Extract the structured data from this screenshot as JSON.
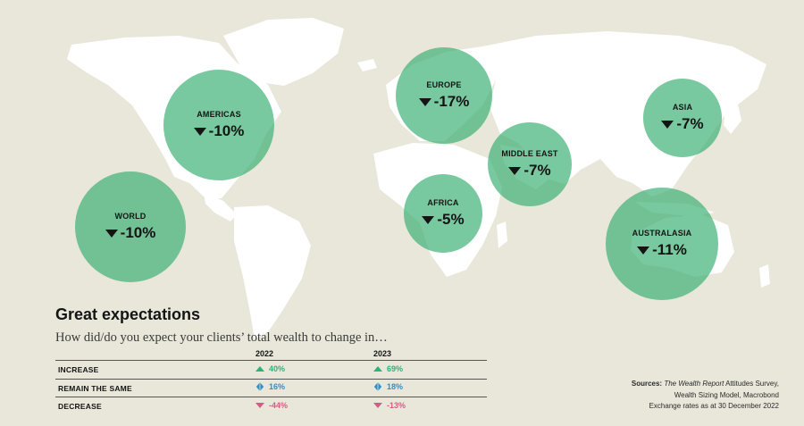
{
  "chart_data": [
    {
      "type": "bubble-map",
      "unit": "%",
      "regions": [
        {
          "name": "WORLD",
          "value": -10
        },
        {
          "name": "AMERICAS",
          "value": -10
        },
        {
          "name": "EUROPE",
          "value": -17
        },
        {
          "name": "AFRICA",
          "value": -5
        },
        {
          "name": "MIDDLE EAST",
          "value": -7
        },
        {
          "name": "ASIA",
          "value": -7
        },
        {
          "name": "AUSTRALASIA",
          "value": -11
        }
      ]
    },
    {
      "type": "table",
      "title": "Great expectations",
      "subtitle": "How did/do you expect your clients’ total wealth to change in…",
      "columns": [
        "2022",
        "2023"
      ],
      "rows": [
        {
          "label": "INCREASE",
          "values": [
            40,
            69
          ],
          "icon": "up-triangle-icon",
          "color": "#2fb17a"
        },
        {
          "label": "REMAIN THE SAME",
          "values": [
            16,
            18
          ],
          "icon": "diamond-icon",
          "color": "#2f8fc4"
        },
        {
          "label": "DECREASE",
          "values": [
            -44,
            -13
          ],
          "icon": "down-triangle-icon",
          "color": "#d65a86"
        }
      ]
    }
  ],
  "display": {
    "bubbles": [
      {
        "label": "WORLD",
        "value": "-10%"
      },
      {
        "label": "AMERICAS",
        "value": "-10%"
      },
      {
        "label": "EUROPE",
        "value": "-17%"
      },
      {
        "label": "AFRICA",
        "value": "-5%"
      },
      {
        "label": "MIDDLE EAST",
        "value": "-7%"
      },
      {
        "label": "ASIA",
        "value": "-7%"
      },
      {
        "label": "AUSTRALASIA",
        "value": "-11%"
      }
    ],
    "table": {
      "title": "Great expectations",
      "subtitle": "How did/do you expect your clients’ total wealth to change in…",
      "year_2022": "2022",
      "year_2023": "2023",
      "rows": [
        {
          "label": "INCREASE",
          "v2022": "40%",
          "v2023": "69%"
        },
        {
          "label": "REMAIN THE SAME",
          "v2022": "16%",
          "v2023": "18%"
        },
        {
          "label": "DECREASE",
          "v2022": "-44%",
          "v2023": "-13%"
        }
      ]
    },
    "sources": {
      "lead": "Sources: ",
      "report_italic": "The Wealth Report",
      "line1_rest": " Attitudes Survey,",
      "line2": "Wealth Sizing Model, Macrobond",
      "line3": "Exchange rates as at 30 December 2022"
    }
  },
  "colors": {
    "background": "#e9e7da",
    "land": "#ffffff",
    "bubble": "#3ab073",
    "increase": "#2fb17a",
    "same": "#2f8fc4",
    "decrease": "#d65a86"
  }
}
